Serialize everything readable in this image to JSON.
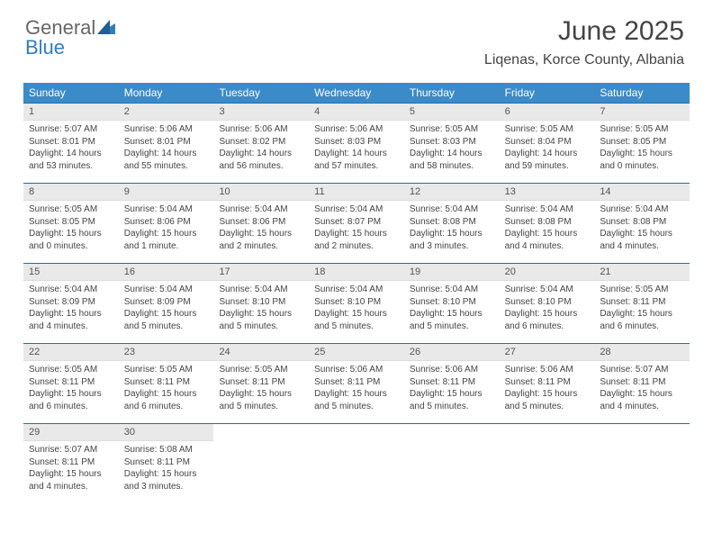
{
  "logo": {
    "word1": "General",
    "word2": "Blue"
  },
  "header": {
    "title": "June 2025",
    "subtitle": "Liqenas, Korce County, Albania"
  },
  "colors": {
    "header_bg": "#3b8bc9",
    "header_text": "#ffffff",
    "daynum_bg": "#e9e9e9",
    "week_border": "#2c6ca3",
    "brand_blue": "#2f7ec0"
  },
  "typography": {
    "title_fontsize": 30,
    "subtitle_fontsize": 16,
    "dow_fontsize": 12,
    "daynum_fontsize": 11,
    "body_fontsize": 10
  },
  "calendar": {
    "type": "table",
    "dow": [
      "Sunday",
      "Monday",
      "Tuesday",
      "Wednesday",
      "Thursday",
      "Friday",
      "Saturday"
    ],
    "weeks": [
      [
        {
          "n": "1",
          "sr": "5:07 AM",
          "ss": "8:01 PM",
          "dl": "14 hours and 53 minutes."
        },
        {
          "n": "2",
          "sr": "5:06 AM",
          "ss": "8:01 PM",
          "dl": "14 hours and 55 minutes."
        },
        {
          "n": "3",
          "sr": "5:06 AM",
          "ss": "8:02 PM",
          "dl": "14 hours and 56 minutes."
        },
        {
          "n": "4",
          "sr": "5:06 AM",
          "ss": "8:03 PM",
          "dl": "14 hours and 57 minutes."
        },
        {
          "n": "5",
          "sr": "5:05 AM",
          "ss": "8:03 PM",
          "dl": "14 hours and 58 minutes."
        },
        {
          "n": "6",
          "sr": "5:05 AM",
          "ss": "8:04 PM",
          "dl": "14 hours and 59 minutes."
        },
        {
          "n": "7",
          "sr": "5:05 AM",
          "ss": "8:05 PM",
          "dl": "15 hours and 0 minutes."
        }
      ],
      [
        {
          "n": "8",
          "sr": "5:05 AM",
          "ss": "8:05 PM",
          "dl": "15 hours and 0 minutes."
        },
        {
          "n": "9",
          "sr": "5:04 AM",
          "ss": "8:06 PM",
          "dl": "15 hours and 1 minute."
        },
        {
          "n": "10",
          "sr": "5:04 AM",
          "ss": "8:06 PM",
          "dl": "15 hours and 2 minutes."
        },
        {
          "n": "11",
          "sr": "5:04 AM",
          "ss": "8:07 PM",
          "dl": "15 hours and 2 minutes."
        },
        {
          "n": "12",
          "sr": "5:04 AM",
          "ss": "8:08 PM",
          "dl": "15 hours and 3 minutes."
        },
        {
          "n": "13",
          "sr": "5:04 AM",
          "ss": "8:08 PM",
          "dl": "15 hours and 4 minutes."
        },
        {
          "n": "14",
          "sr": "5:04 AM",
          "ss": "8:08 PM",
          "dl": "15 hours and 4 minutes."
        }
      ],
      [
        {
          "n": "15",
          "sr": "5:04 AM",
          "ss": "8:09 PM",
          "dl": "15 hours and 4 minutes."
        },
        {
          "n": "16",
          "sr": "5:04 AM",
          "ss": "8:09 PM",
          "dl": "15 hours and 5 minutes."
        },
        {
          "n": "17",
          "sr": "5:04 AM",
          "ss": "8:10 PM",
          "dl": "15 hours and 5 minutes."
        },
        {
          "n": "18",
          "sr": "5:04 AM",
          "ss": "8:10 PM",
          "dl": "15 hours and 5 minutes."
        },
        {
          "n": "19",
          "sr": "5:04 AM",
          "ss": "8:10 PM",
          "dl": "15 hours and 5 minutes."
        },
        {
          "n": "20",
          "sr": "5:04 AM",
          "ss": "8:10 PM",
          "dl": "15 hours and 6 minutes."
        },
        {
          "n": "21",
          "sr": "5:05 AM",
          "ss": "8:11 PM",
          "dl": "15 hours and 6 minutes."
        }
      ],
      [
        {
          "n": "22",
          "sr": "5:05 AM",
          "ss": "8:11 PM",
          "dl": "15 hours and 6 minutes."
        },
        {
          "n": "23",
          "sr": "5:05 AM",
          "ss": "8:11 PM",
          "dl": "15 hours and 6 minutes."
        },
        {
          "n": "24",
          "sr": "5:05 AM",
          "ss": "8:11 PM",
          "dl": "15 hours and 5 minutes."
        },
        {
          "n": "25",
          "sr": "5:06 AM",
          "ss": "8:11 PM",
          "dl": "15 hours and 5 minutes."
        },
        {
          "n": "26",
          "sr": "5:06 AM",
          "ss": "8:11 PM",
          "dl": "15 hours and 5 minutes."
        },
        {
          "n": "27",
          "sr": "5:06 AM",
          "ss": "8:11 PM",
          "dl": "15 hours and 5 minutes."
        },
        {
          "n": "28",
          "sr": "5:07 AM",
          "ss": "8:11 PM",
          "dl": "15 hours and 4 minutes."
        }
      ],
      [
        {
          "n": "29",
          "sr": "5:07 AM",
          "ss": "8:11 PM",
          "dl": "15 hours and 4 minutes."
        },
        {
          "n": "30",
          "sr": "5:08 AM",
          "ss": "8:11 PM",
          "dl": "15 hours and 3 minutes."
        },
        null,
        null,
        null,
        null,
        null
      ]
    ],
    "labels": {
      "sunrise": "Sunrise:",
      "sunset": "Sunset:",
      "daylight": "Daylight:"
    }
  }
}
